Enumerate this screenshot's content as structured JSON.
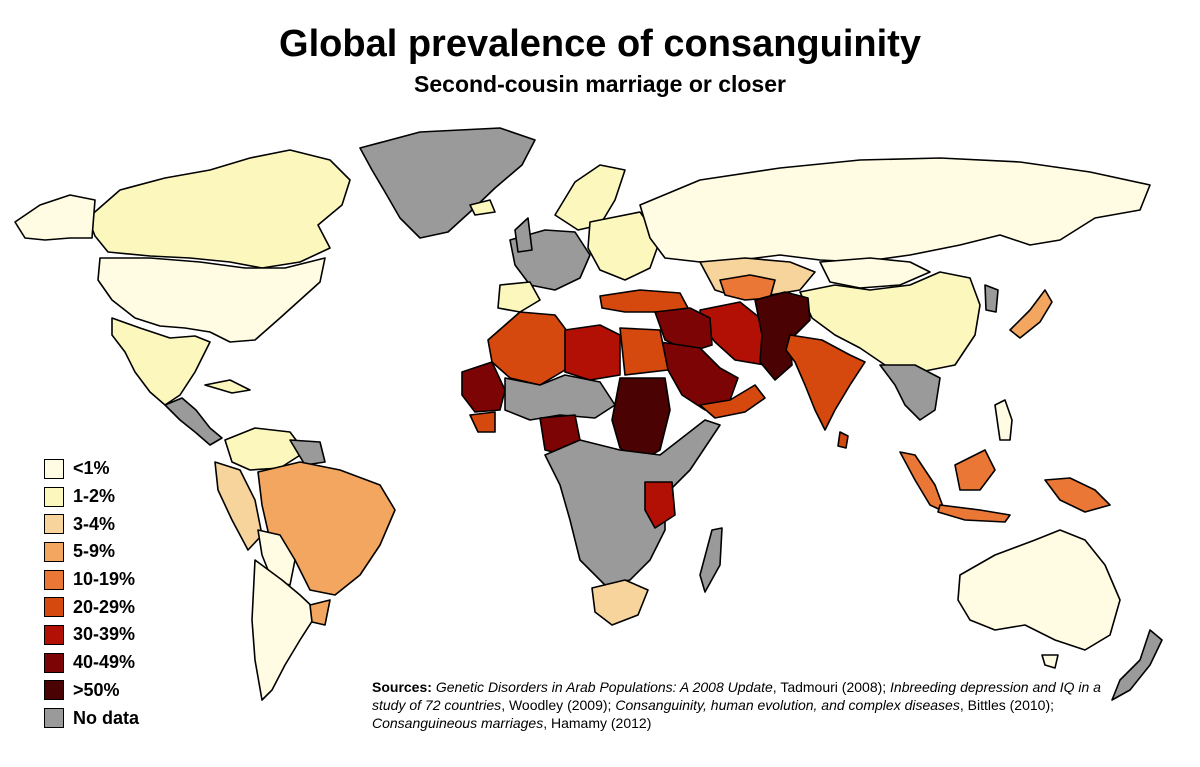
{
  "title": "Global prevalence of consanguinity",
  "subtitle": "Second-cousin marriage or closer",
  "colors": {
    "lt1": "#fffce3",
    "p1_2": "#fcf8bd",
    "p3_4": "#f7d49c",
    "p5_9": "#f2a65f",
    "p10_19": "#eb7737",
    "p20_29": "#d5480e",
    "p30_39": "#b31005",
    "p40_49": "#7d0404",
    "p50": "#4a0202",
    "nodata": "#9a9a9a"
  },
  "legend": [
    {
      "label": "<1%",
      "color": "#fffce3"
    },
    {
      "label": "1-2%",
      "color": "#fcf8bd"
    },
    {
      "label": "3-4%",
      "color": "#f7d49c"
    },
    {
      "label": "5-9%",
      "color": "#f2a65f"
    },
    {
      "label": "10-19%",
      "color": "#eb7737"
    },
    {
      "label": "20-29%",
      "color": "#d5480e"
    },
    {
      "label": "30-39%",
      "color": "#b31005"
    },
    {
      "label": "40-49%",
      "color": "#7d0404"
    },
    {
      "label": ">50%",
      "color": "#4a0202"
    },
    {
      "label": "No data",
      "color": "#9a9a9a"
    }
  ],
  "sources": {
    "label": "Sources:",
    "s1_title": "Genetic Disorders in Arab Populations: A 2008 Update",
    "s1_author": ", Tadmouri (2008); ",
    "s2_title": "Inbreeding depression and IQ in a study of 72 countries",
    "s2_author": ", Woodley (2009); ",
    "s3_title": "Consanguinity, human evolution, and complex diseases",
    "s3_author": ", Bittles (2010); ",
    "s4_title": "Consanguineous marriages",
    "s4_author": ", Hamamy (2012)"
  }
}
